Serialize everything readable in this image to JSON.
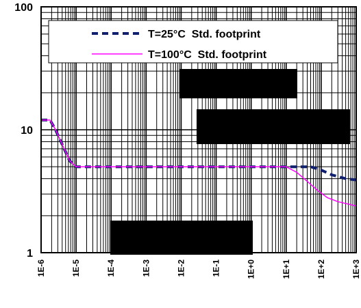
{
  "chart_data": {
    "type": "line",
    "x_scale": "log",
    "y_scale": "log",
    "xlim": [
      1e-06,
      1000
    ],
    "ylim": [
      1,
      100
    ],
    "grid": true,
    "legend_position": "top-right",
    "x_tick_labels": [
      "1E-6",
      "1E-5",
      "1E-4",
      "1E-3",
      "1E-2",
      "1E-1",
      "1E+0",
      "1E+1",
      "1E+2",
      "1E+3"
    ],
    "x_tick_values": [
      1e-06,
      1e-05,
      0.0001,
      0.001,
      0.01,
      0.1,
      1,
      10,
      100,
      1000
    ],
    "y_tick_labels": [
      "1",
      "10",
      "100"
    ],
    "y_tick_values": [
      1,
      10,
      100
    ],
    "series": [
      {
        "name": "T=25°C  Std. footprint",
        "style": "dashed",
        "color": "#10206e",
        "x": [
          1e-06,
          1.8e-06,
          2.5e-06,
          4e-06,
          6.5e-06,
          1e-05,
          0.0001,
          0.001,
          0.01,
          0.1,
          1,
          10,
          20,
          50,
          100,
          200,
          500,
          1000
        ],
        "y": [
          12,
          12,
          10.2,
          7.6,
          5.6,
          5.0,
          5.0,
          5.0,
          5.0,
          5.0,
          5.0,
          5.0,
          5.0,
          5.0,
          4.7,
          4.3,
          4.0,
          3.9
        ]
      },
      {
        "name": "T=100°C  Std. footprint",
        "style": "solid",
        "color": "#ff00ff",
        "x": [
          1e-06,
          1.8e-06,
          2.5e-06,
          4e-06,
          6.5e-06,
          1e-05,
          0.0001,
          0.001,
          0.01,
          0.1,
          1,
          10,
          20,
          40,
          80,
          150,
          300,
          1000
        ],
        "y": [
          12,
          12,
          10.2,
          7.6,
          5.6,
          5.0,
          5.0,
          5.0,
          5.0,
          5.0,
          5.0,
          5.0,
          4.5,
          3.8,
          3.2,
          2.8,
          2.6,
          2.4
        ]
      }
    ]
  },
  "colors": {
    "axis": "#000000",
    "grid": "#000000",
    "redaction": "#000000",
    "background": "#ffffff"
  }
}
